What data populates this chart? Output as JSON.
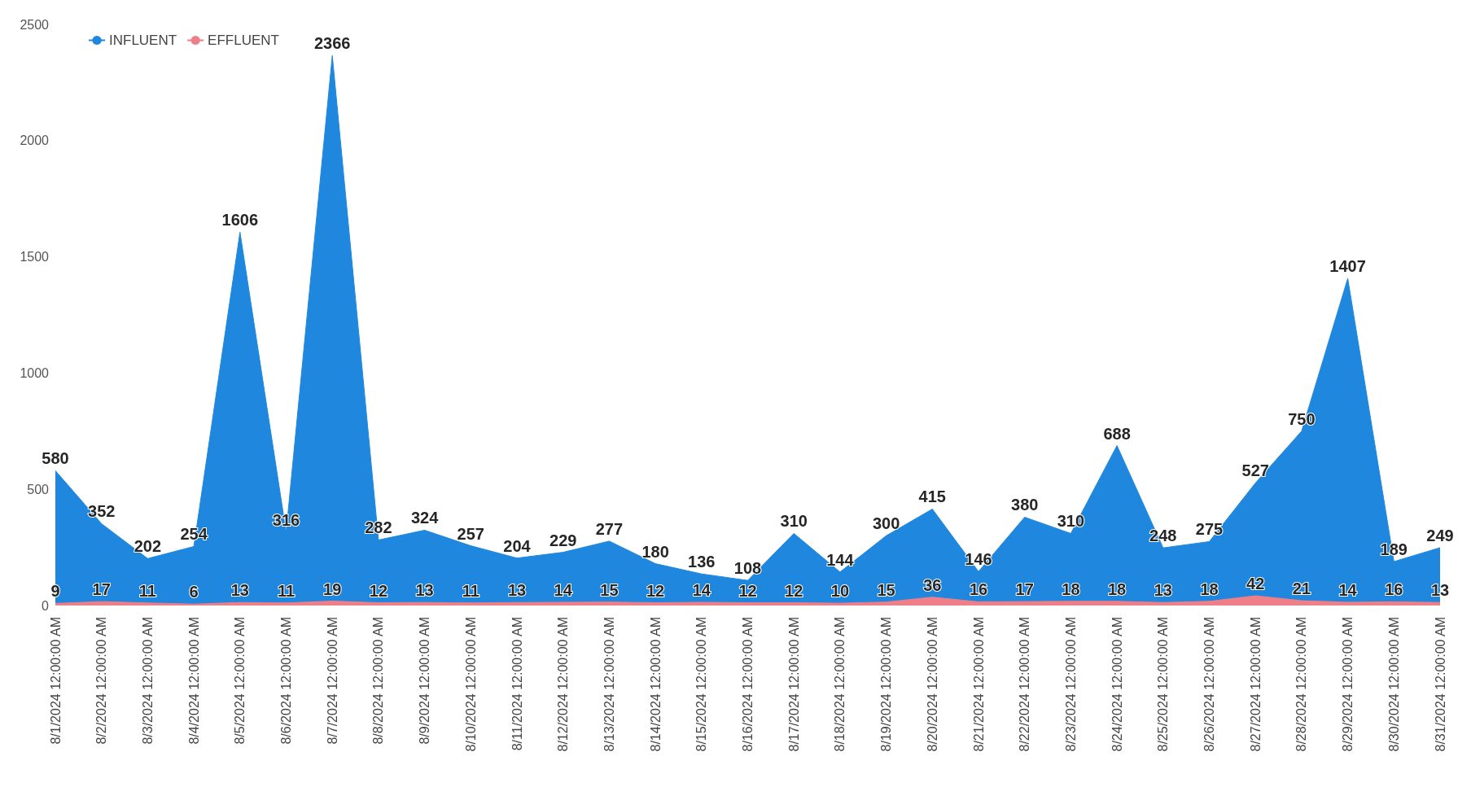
{
  "chart_data": {
    "type": "area",
    "categories": [
      "8/1/2024 12:00:00 AM",
      "8/2/2024 12:00:00 AM",
      "8/3/2024 12:00:00 AM",
      "8/4/2024 12:00:00 AM",
      "8/5/2024 12:00:00 AM",
      "8/6/2024 12:00:00 AM",
      "8/7/2024 12:00:00 AM",
      "8/8/2024 12:00:00 AM",
      "8/9/2024 12:00:00 AM",
      "8/10/2024 12:00:00 AM",
      "8/11/2024 12:00:00 AM",
      "8/12/2024 12:00:00 AM",
      "8/13/2024 12:00:00 AM",
      "8/14/2024 12:00:00 AM",
      "8/15/2024 12:00:00 AM",
      "8/16/2024 12:00:00 AM",
      "8/17/2024 12:00:00 AM",
      "8/18/2024 12:00:00 AM",
      "8/19/2024 12:00:00 AM",
      "8/20/2024 12:00:00 AM",
      "8/21/2024 12:00:00 AM",
      "8/22/2024 12:00:00 AM",
      "8/23/2024 12:00:00 AM",
      "8/24/2024 12:00:00 AM",
      "8/25/2024 12:00:00 AM",
      "8/26/2024 12:00:00 AM",
      "8/27/2024 12:00:00 AM",
      "8/28/2024 12:00:00 AM",
      "8/29/2024 12:00:00 AM",
      "8/30/2024 12:00:00 AM",
      "8/31/2024 12:00:00 AM"
    ],
    "series": [
      {
        "name": "INFLUENT",
        "color": "#1f88de",
        "values": [
          580,
          352,
          202,
          254,
          1606,
          316,
          2366,
          282,
          324,
          257,
          204,
          229,
          277,
          180,
          136,
          108,
          310,
          144,
          300,
          415,
          146,
          380,
          310,
          688,
          248,
          275,
          527,
          750,
          1407,
          189,
          249
        ]
      },
      {
        "name": "EFFLUENT",
        "color": "#ee7f88",
        "values": [
          9,
          17,
          11,
          6,
          13,
          11,
          19,
          12,
          13,
          11,
          13,
          14,
          15,
          12,
          14,
          12,
          12,
          10,
          15,
          36,
          16,
          17,
          18,
          18,
          13,
          18,
          42,
          21,
          14,
          16,
          13
        ]
      }
    ],
    "ylim": [
      0,
      2500
    ],
    "yticks": [
      0,
      500,
      1000,
      1500,
      2000,
      2500
    ],
    "grid": false,
    "legend": "top left",
    "data_labels": true,
    "marker": "none"
  }
}
